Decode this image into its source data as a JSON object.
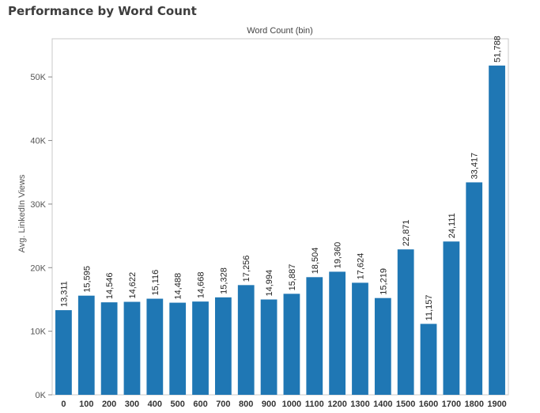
{
  "page": {
    "title": "Performance by Word Count"
  },
  "chart_data": {
    "type": "bar",
    "title": "Performance by Word Count",
    "xlabel": "Word Count (bin)",
    "ylabel": "Avg. LinkedIn Views",
    "categories": [
      "0",
      "100",
      "200",
      "300",
      "400",
      "500",
      "600",
      "700",
      "800",
      "900",
      "1000",
      "1100",
      "1200",
      "1300",
      "1400",
      "1500",
      "1600",
      "1700",
      "1800",
      "1900"
    ],
    "values": [
      13311,
      15595,
      14546,
      14622,
      15116,
      14488,
      14668,
      15328,
      17256,
      14994,
      15887,
      18504,
      19360,
      17624,
      15219,
      22871,
      11157,
      24111,
      33417,
      51788
    ],
    "value_labels": [
      "13,311",
      "15,595",
      "14,546",
      "14,622",
      "15,116",
      "14,488",
      "14,668",
      "15,328",
      "17,256",
      "14,994",
      "15,887",
      "18,504",
      "19,360",
      "17,624",
      "15,219",
      "22,871",
      "11,157",
      "24,111",
      "33,417",
      "51,788"
    ],
    "ylim": [
      0,
      56000
    ],
    "yticks": [
      0,
      10000,
      20000,
      30000,
      40000,
      50000
    ],
    "ytick_labels": [
      "0K",
      "10K",
      "20K",
      "30K",
      "40K",
      "50K"
    ],
    "bar_color": "#1f77b4",
    "grid": false,
    "legend": "none"
  }
}
